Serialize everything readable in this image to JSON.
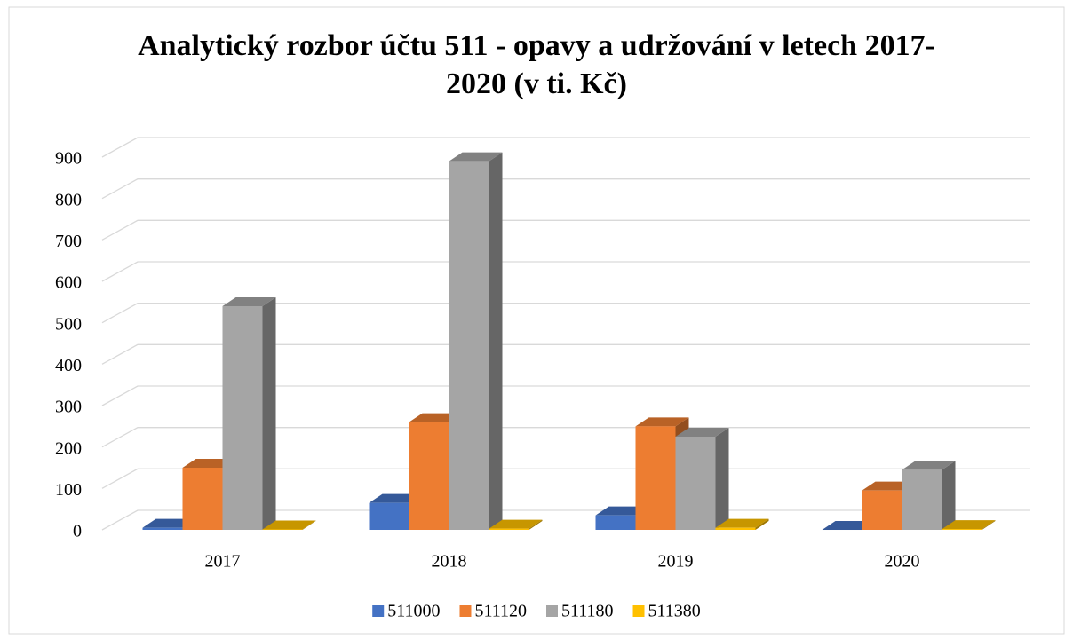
{
  "chart_data": {
    "type": "bar3d",
    "title": "Analytický rozbor účtu 511 - opavy a udržování v letech 2017-2020 (v ti. Kč)",
    "categories": [
      "2017",
      "2018",
      "2019",
      "2020"
    ],
    "series": [
      {
        "name": "511000",
        "color": "#4472c4",
        "values": [
          5,
          65,
          35,
          0
        ]
      },
      {
        "name": "511120",
        "color": "#ed7d31",
        "values": [
          150,
          260,
          250,
          95
        ]
      },
      {
        "name": "511180",
        "color": "#a5a5a5",
        "values": [
          540,
          890,
          225,
          145
        ]
      },
      {
        "name": "511380",
        "color": "#ffc000",
        "values": [
          1,
          3,
          5,
          2
        ]
      }
    ],
    "ylim": [
      0,
      900
    ],
    "yticks": [
      0,
      100,
      200,
      300,
      400,
      500,
      600,
      700,
      800,
      900
    ],
    "grid": true,
    "legend": "bottom"
  }
}
